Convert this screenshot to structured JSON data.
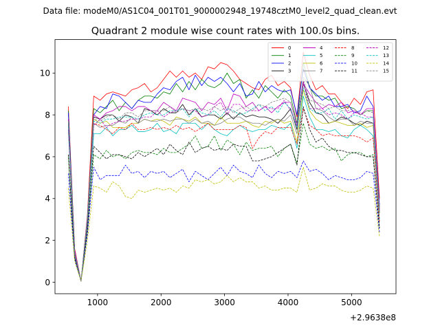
{
  "figure": {
    "suptitle": "Data file: modeM0/AS1C04_001T01_9000002948_19748cztM0_level2_quad_clean.evt"
  },
  "chart_data": {
    "type": "line",
    "title": "Quadrant 2 module wise count rates with 100.0s bins.",
    "xlabel": "",
    "ylabel": "",
    "x_offset_label": "+2.9638e8",
    "xlim": [
      330,
      5700
    ],
    "ylim": [
      -0.55,
      11.6
    ],
    "xticks": [
      1000,
      2000,
      3000,
      4000,
      5000
    ],
    "xtick_labels": [
      "1000",
      "2000",
      "3000",
      "4000",
      "5000"
    ],
    "yticks": [
      0,
      2,
      4,
      6,
      8,
      10
    ],
    "ytick_labels": [
      "0",
      "2",
      "4",
      "6",
      "8",
      "10"
    ],
    "grid": false,
    "legend_location": "top-right",
    "legend_columns": 4,
    "x": [
      540,
      640,
      740,
      840,
      940,
      1040,
      1140,
      1240,
      1340,
      1440,
      1540,
      1640,
      1740,
      1840,
      1940,
      2040,
      2140,
      2240,
      2340,
      2440,
      2540,
      2640,
      2740,
      2840,
      2940,
      3040,
      3140,
      3240,
      3340,
      3440,
      3540,
      3640,
      3740,
      3840,
      3940,
      4040,
      4140,
      4240,
      4340,
      4440,
      4540,
      4640,
      4740,
      4840,
      4940,
      5040,
      5140,
      5240,
      5340,
      5440
    ],
    "series": [
      {
        "name": "0",
        "color": "#ff0000",
        "dash": "solid",
        "values": [
          8.4,
          1.6,
          0.05,
          3.2,
          8.9,
          8.7,
          9.0,
          9.1,
          9.0,
          8.9,
          9.2,
          9.3,
          9.5,
          9.1,
          9.3,
          9.7,
          10.1,
          9.8,
          10.1,
          9.8,
          10.0,
          9.7,
          10.3,
          10.2,
          10.5,
          10.4,
          10.1,
          9.7,
          9.5,
          9.3,
          9.2,
          9.7,
          9.9,
          9.4,
          9.6,
          9.3,
          7.9,
          11.0,
          9.9,
          9.2,
          9.4,
          9.0,
          9.0,
          8.6,
          8.3,
          8.8,
          8.5,
          9.1,
          9.2,
          4.0
        ]
      },
      {
        "name": "1",
        "color": "#008000",
        "dash": "solid",
        "values": [
          8.2,
          1.5,
          0.05,
          3.0,
          8.3,
          8.1,
          8.4,
          8.7,
          8.2,
          8.6,
          8.3,
          8.7,
          8.9,
          8.9,
          8.8,
          9.1,
          9.0,
          9.5,
          9.1,
          9.6,
          9.2,
          9.7,
          9.4,
          9.3,
          9.5,
          10.0,
          9.5,
          9.7,
          8.8,
          9.2,
          8.8,
          9.4,
          9.1,
          8.8,
          9.2,
          8.9,
          7.6,
          10.5,
          9.3,
          8.9,
          8.9,
          8.7,
          8.8,
          8.3,
          8.4,
          8.3,
          8.0,
          8.2,
          8.2,
          3.6
        ]
      },
      {
        "name": "2",
        "color": "#0000ff",
        "dash": "solid",
        "values": [
          8.1,
          1.5,
          0.05,
          3.1,
          8.0,
          8.4,
          8.3,
          9.0,
          8.9,
          8.6,
          8.3,
          8.7,
          8.6,
          8.6,
          9.0,
          9.3,
          9.2,
          9.6,
          9.8,
          9.2,
          9.9,
          9.4,
          9.8,
          9.6,
          9.8,
          9.5,
          9.1,
          9.5,
          8.9,
          9.0,
          9.6,
          9.1,
          9.4,
          9.2,
          9.1,
          9.2,
          8.0,
          10.2,
          9.3,
          9.0,
          8.7,
          8.9,
          8.4,
          8.4,
          8.5,
          8.1,
          8.2,
          8.9,
          8.4,
          3.7
        ]
      },
      {
        "name": "3",
        "color": "#000000",
        "dash": "solid",
        "values": [
          7.6,
          1.4,
          0.05,
          2.9,
          7.9,
          7.8,
          8.0,
          8.0,
          7.7,
          8.0,
          7.9,
          7.6,
          8.3,
          8.2,
          8.0,
          8.3,
          8.1,
          8.1,
          8.5,
          8.0,
          8.3,
          7.9,
          8.0,
          8.0,
          7.8,
          8.1,
          7.8,
          8.1,
          7.9,
          8.0,
          7.9,
          7.9,
          7.8,
          7.6,
          7.9,
          8.3,
          7.3,
          9.5,
          8.6,
          8.1,
          8.0,
          7.6,
          7.7,
          7.9,
          7.8,
          7.6,
          7.5,
          7.7,
          7.6,
          3.3
        ]
      },
      {
        "name": "4",
        "color": "#bf00bf",
        "dash": "solid",
        "values": [
          7.8,
          1.5,
          0.05,
          3.0,
          8.0,
          7.8,
          8.1,
          8.2,
          8.4,
          8.4,
          8.2,
          8.4,
          8.4,
          8.2,
          8.2,
          8.6,
          8.4,
          8.2,
          8.8,
          8.7,
          8.6,
          8.2,
          8.6,
          8.5,
          8.8,
          8.2,
          9.0,
          8.9,
          8.4,
          8.6,
          8.2,
          8.4,
          8.1,
          8.4,
          8.6,
          8.6,
          7.5,
          9.5,
          9.0,
          8.6,
          8.3,
          8.5,
          8.4,
          8.6,
          8.1,
          8.2,
          8.0,
          8.3,
          8.3,
          3.5
        ]
      },
      {
        "name": "5",
        "color": "#00bfbf",
        "dash": "solid",
        "values": [
          7.2,
          1.3,
          0.05,
          2.8,
          7.1,
          7.1,
          7.4,
          7.0,
          7.3,
          7.3,
          7.5,
          7.2,
          7.2,
          7.3,
          7.6,
          7.2,
          7.3,
          7.1,
          7.6,
          7.6,
          7.6,
          7.3,
          7.6,
          7.3,
          7.1,
          7.0,
          7.3,
          7.5,
          7.3,
          7.2,
          7.3,
          7.3,
          7.5,
          7.4,
          7.3,
          7.6,
          6.4,
          8.9,
          7.9,
          7.3,
          7.3,
          7.2,
          7.3,
          7.0,
          6.9,
          7.3,
          7.5,
          7.3,
          7.0,
          3.0
        ]
      },
      {
        "name": "6",
        "color": "#bfbf00",
        "dash": "solid",
        "values": [
          7.7,
          1.4,
          0.05,
          3.0,
          7.8,
          7.6,
          7.7,
          7.4,
          7.4,
          7.4,
          7.6,
          7.6,
          7.8,
          7.7,
          7.8,
          7.7,
          7.5,
          7.9,
          7.8,
          7.7,
          7.9,
          7.6,
          7.6,
          7.5,
          7.9,
          7.6,
          7.6,
          7.6,
          7.7,
          7.5,
          7.4,
          7.7,
          7.6,
          7.8,
          7.6,
          7.7,
          6.7,
          9.2,
          8.2,
          7.8,
          7.6,
          7.6,
          7.7,
          7.6,
          7.5,
          7.5,
          7.6,
          7.4,
          7.5,
          3.3
        ]
      },
      {
        "name": "7",
        "color": "#808080",
        "dash": "solid",
        "values": [
          7.5,
          1.4,
          0.05,
          2.9,
          7.6,
          7.4,
          7.5,
          7.5,
          7.7,
          7.6,
          7.9,
          7.6,
          7.8,
          7.7,
          7.7,
          7.8,
          7.7,
          7.8,
          7.8,
          7.6,
          7.8,
          7.6,
          7.7,
          7.5,
          7.6,
          7.8,
          7.9,
          7.9,
          7.7,
          7.6,
          7.6,
          7.5,
          7.7,
          7.8,
          7.7,
          8.0,
          7.1,
          9.8,
          9.4,
          8.3,
          8.2,
          7.9,
          7.7,
          7.8,
          7.8,
          7.5,
          7.7,
          7.6,
          7.6,
          3.3
        ]
      },
      {
        "name": "8",
        "color": "#ff0000",
        "dash": "dashed",
        "values": [
          7.3,
          1.3,
          0.05,
          2.8,
          7.6,
          7.5,
          7.3,
          7.1,
          7.4,
          7.3,
          7.6,
          7.3,
          7.3,
          7.4,
          7.3,
          7.4,
          7.3,
          7.5,
          7.3,
          7.4,
          7.2,
          7.4,
          7.6,
          7.3,
          7.3,
          7.3,
          7.3,
          7.5,
          7.4,
          6.4,
          6.9,
          7.2,
          7.1,
          7.4,
          7.4,
          7.4,
          6.6,
          8.3,
          7.5,
          7.3,
          7.0,
          7.1,
          7.0,
          7.0,
          7.0,
          7.0,
          6.9,
          6.7,
          6.9,
          2.9
        ]
      },
      {
        "name": "9",
        "color": "#008000",
        "dash": "dashed",
        "values": [
          6.0,
          1.2,
          0.05,
          2.5,
          6.1,
          5.9,
          6.3,
          6.0,
          6.1,
          5.9,
          6.2,
          6.3,
          6.2,
          6.2,
          6.1,
          6.4,
          6.2,
          6.2,
          6.4,
          6.6,
          7.0,
          6.4,
          6.5,
          7.0,
          6.3,
          6.8,
          6.6,
          6.1,
          6.7,
          6.3,
          6.4,
          6.4,
          6.5,
          6.0,
          6.4,
          6.6,
          5.7,
          7.6,
          6.6,
          6.4,
          6.5,
          6.3,
          6.4,
          5.8,
          6.1,
          6.2,
          6.2,
          6.0,
          6.1,
          2.6
        ]
      },
      {
        "name": "10",
        "color": "#0000ff",
        "dash": "dashed",
        "values": [
          5.2,
          1.1,
          0.05,
          2.3,
          5.5,
          4.9,
          5.1,
          5.1,
          5.1,
          5.6,
          5.2,
          5.3,
          5.0,
          5.3,
          5.2,
          5.3,
          5.0,
          5.2,
          5.4,
          4.8,
          5.3,
          5.1,
          4.9,
          5.2,
          5.5,
          5.1,
          5.6,
          5.3,
          5.2,
          5.0,
          5.6,
          5.2,
          5.0,
          5.3,
          5.2,
          5.3,
          5.0,
          5.8,
          5.3,
          5.4,
          5.2,
          4.9,
          5.1,
          5.0,
          4.9,
          4.9,
          5.0,
          5.3,
          5.2,
          2.4
        ]
      },
      {
        "name": "11",
        "color": "#000000",
        "dash": "dashed",
        "values": [
          6.1,
          1.2,
          0.05,
          2.5,
          6.5,
          6.2,
          5.9,
          6.1,
          6.1,
          6.0,
          5.9,
          6.2,
          6.0,
          6.2,
          6.4,
          6.1,
          6.6,
          6.3,
          6.1,
          6.7,
          6.2,
          6.4,
          6.5,
          6.3,
          6.4,
          6.3,
          6.6,
          6.5,
          6.5,
          5.8,
          5.8,
          5.9,
          6.0,
          6.2,
          6.4,
          6.6,
          5.6,
          8.4,
          7.3,
          6.7,
          6.9,
          6.5,
          6.3,
          6.3,
          6.2,
          6.2,
          6.1,
          6.0,
          6.0,
          2.6
        ]
      },
      {
        "name": "12",
        "color": "#bf00bf",
        "dash": "dashed",
        "values": [
          7.3,
          1.3,
          0.05,
          2.8,
          7.5,
          7.8,
          7.4,
          7.6,
          7.7,
          7.7,
          7.8,
          7.8,
          7.9,
          7.9,
          8.2,
          7.9,
          8.1,
          8.2,
          8.3,
          8.2,
          8.2,
          7.9,
          8.0,
          8.4,
          8.6,
          8.0,
          8.5,
          8.5,
          8.2,
          8.2,
          8.2,
          8.4,
          8.3,
          8.3,
          8.7,
          8.2,
          7.5,
          9.6,
          8.3,
          8.3,
          8.3,
          8.0,
          8.1,
          8.0,
          7.8,
          8.1,
          8.1,
          7.9,
          7.9,
          3.4
        ]
      },
      {
        "name": "13",
        "color": "#00bfbf",
        "dash": "dashed",
        "values": [
          7.6,
          1.4,
          0.05,
          2.9,
          7.7,
          7.6,
          7.8,
          7.8,
          7.9,
          7.9,
          7.9,
          7.8,
          8.0,
          8.1,
          8.0,
          8.0,
          8.2,
          8.2,
          8.3,
          7.9,
          8.3,
          8.1,
          8.0,
          8.2,
          7.9,
          8.3,
          8.2,
          8.0,
          8.1,
          8.3,
          8.5,
          8.2,
          8.4,
          8.1,
          8.6,
          8.3,
          7.4,
          9.3,
          8.3,
          8.1,
          8.1,
          8.3,
          7.8,
          8.2,
          7.8,
          8.0,
          7.9,
          7.8,
          7.9,
          3.4
        ]
      },
      {
        "name": "14",
        "color": "#bfbf00",
        "dash": "dashed",
        "values": [
          4.5,
          1.0,
          0.05,
          2.0,
          4.6,
          4.5,
          4.3,
          4.8,
          4.6,
          4.1,
          4.0,
          4.4,
          4.3,
          4.4,
          4.5,
          4.4,
          4.5,
          4.3,
          4.6,
          4.5,
          4.9,
          4.8,
          4.9,
          4.7,
          4.8,
          5.1,
          4.8,
          5.0,
          4.8,
          4.8,
          4.5,
          4.6,
          4.4,
          4.4,
          4.5,
          4.5,
          4.3,
          5.5,
          4.4,
          4.5,
          4.7,
          4.6,
          4.6,
          4.4,
          4.3,
          4.3,
          4.4,
          4.6,
          4.5,
          2.2
        ]
      },
      {
        "name": "15",
        "color": "#808080",
        "dash": "dashed",
        "values": [
          7.7,
          1.4,
          0.05,
          3.0,
          7.8,
          7.7,
          7.9,
          8.0,
          7.8,
          8.1,
          8.1,
          7.9,
          8.2,
          8.2,
          8.2,
          8.2,
          8.4,
          8.1,
          8.3,
          8.2,
          8.3,
          8.3,
          8.2,
          8.4,
          8.2,
          8.4,
          8.1,
          8.3,
          8.4,
          8.2,
          8.5,
          8.4,
          8.6,
          8.7,
          8.8,
          8.6,
          7.6,
          9.7,
          8.7,
          8.6,
          8.5,
          8.3,
          8.4,
          8.2,
          8.2,
          8.3,
          8.0,
          8.2,
          8.1,
          3.5
        ]
      }
    ]
  }
}
